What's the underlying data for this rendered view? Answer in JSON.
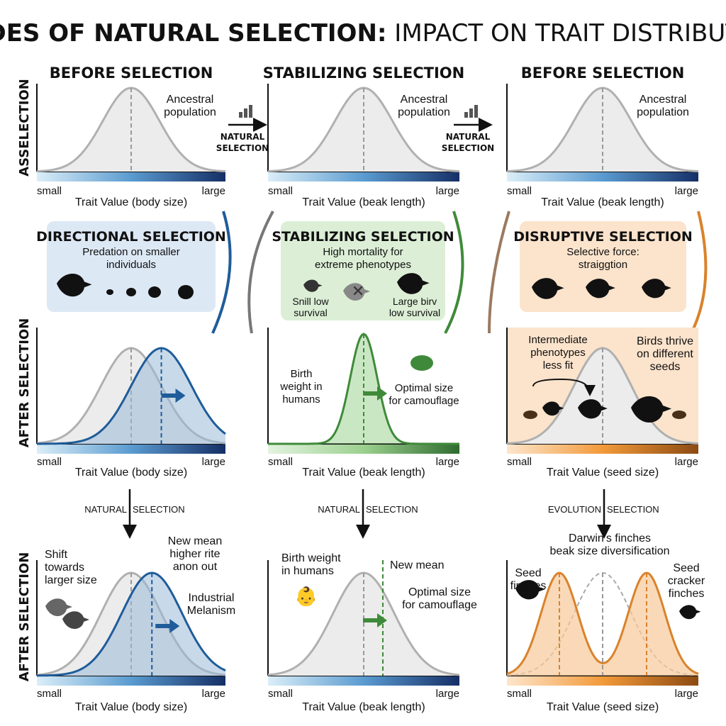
{
  "title_bold": "MODES OF NATURAL SELECTION:",
  "title_rest": " IMPACT ON TRAIT DISTRIBUTION",
  "row_labels": {
    "row1": "ASSELECTION",
    "row3": "AFTER SELECTION",
    "row4": "AFTER SELECTION"
  },
  "columns": [
    {
      "heading": "BEFORE SELECTION",
      "top_note": [
        "Ancestral",
        "population"
      ],
      "axis_small": "small",
      "axis_large": "large",
      "axis_title": "Trait Value (body size)"
    },
    {
      "heading": "STABILIZING SELECTION",
      "top_note": [
        "Ancestral",
        "population"
      ],
      "axis_small": "small",
      "axis_large": "large",
      "axis_title": "Trait Value (beak length)"
    },
    {
      "heading": "BEFORE SELECTION",
      "top_note": [
        "Ancestral",
        "population"
      ],
      "axis_small": "small",
      "axis_large": "large",
      "axis_title": "Trait Value (beak length)"
    }
  ],
  "between_arrows": [
    {
      "label": [
        "NATURAL",
        "SELECTION"
      ],
      "icon": "growth-chart-icon"
    },
    {
      "label": [
        "NATURAL",
        "SELECTION"
      ],
      "icon": "rising-bars-icon"
    }
  ],
  "boxes": [
    {
      "title": "DIRECTIONAL SELECTION",
      "subtitle": [
        "Predation on smaller",
        "individuals"
      ],
      "color": "#dde8f5"
    },
    {
      "title": "STABILIZING SELECTION",
      "subtitle": [
        "High mortality for",
        "extreme phenotypes"
      ],
      "left_note": [
        "Snill low",
        "survival"
      ],
      "right_note": [
        "Large birv",
        "low survival"
      ],
      "color": "#dcefd6"
    },
    {
      "title": "DISRUPTIVE SELECTION",
      "subtitle": [
        "Selective force:",
        "straiggtion"
      ],
      "color": "#fbe3cc"
    }
  ],
  "row3": [
    {
      "axis_small": "small",
      "axis_large": "large",
      "axis_title": "Trait Value (body size)"
    },
    {
      "left_note": [
        "Birth",
        "weight in",
        "humans"
      ],
      "right_note": [
        "Optimal size",
        "for camouflage"
      ],
      "axis_small": "small",
      "axis_large": "large",
      "axis_title": "Trait Value (beak length)"
    },
    {
      "left_note": [
        "Intermediate",
        "phenotypes",
        "less fit"
      ],
      "right_note": [
        "Birds thrive",
        "on different",
        "seeds"
      ],
      "axis_small": "small",
      "axis_large": "large",
      "axis_title": "Trait Value (seed size)"
    }
  ],
  "down_arrows": [
    {
      "left": "NATURAL",
      "right": "SELECTION"
    },
    {
      "left": "NATURAL",
      "right": "SELECTION"
    },
    {
      "left": "EVOLUTION",
      "right": "SELECTION"
    }
  ],
  "row4": [
    {
      "left_note": [
        "Shift",
        "towards",
        "larger size"
      ],
      "top_note": [
        "New mean",
        "higher rite",
        "anon out"
      ],
      "right_note": [
        "Industrial",
        "Melanism"
      ],
      "axis_small": "small",
      "axis_large": "large",
      "axis_title": "Trait Value (body size)"
    },
    {
      "left_note": [
        "Birth weight",
        "in humans"
      ],
      "top_note": [
        "New mean"
      ],
      "right_note": [
        "Optimal size",
        "for camouflage"
      ],
      "axis_small": "small",
      "axis_large": "large",
      "axis_title": "Trait Value (beak length)"
    },
    {
      "top_note": [
        "Darwin's finches",
        "beak size diversification"
      ],
      "left_note": [
        "Seed",
        "finches"
      ],
      "right_note": [
        "Seed",
        "cracker",
        "finches"
      ],
      "axis_small": "small",
      "axis_large": "large",
      "axis_title": "Trait Value (seed size)"
    }
  ],
  "colors": {
    "blue": "#1f5c99",
    "green": "#3f8a3a",
    "orange": "#d9822b",
    "gray": "#b0b0b0",
    "brown": "#9c7a60"
  }
}
